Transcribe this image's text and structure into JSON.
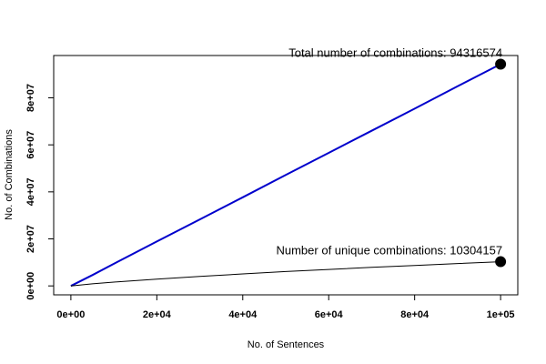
{
  "chart_data": {
    "type": "line",
    "title": "",
    "xlabel": "No. of Sentences",
    "ylabel": "No. of Combinations",
    "xlim": [
      -4000,
      104000
    ],
    "ylim": [
      -3800000,
      98000000
    ],
    "x_ticks": [
      {
        "value": 0,
        "label": "0e+00"
      },
      {
        "value": 20000,
        "label": "2e+04"
      },
      {
        "value": 40000,
        "label": "4e+04"
      },
      {
        "value": 60000,
        "label": "6e+04"
      },
      {
        "value": 80000,
        "label": "8e+04"
      },
      {
        "value": 100000,
        "label": "1e+05"
      }
    ],
    "y_ticks": [
      {
        "value": 0,
        "label": "0e+00"
      },
      {
        "value": 20000000,
        "label": "2e+07"
      },
      {
        "value": 40000000,
        "label": "4e+07"
      },
      {
        "value": 60000000,
        "label": "6e+07"
      },
      {
        "value": 80000000,
        "label": "8e+07"
      }
    ],
    "series": [
      {
        "color": "#0000cc",
        "x": [
          0,
          5000,
          10000,
          20000,
          30000,
          40000,
          50000,
          60000,
          70000,
          80000,
          90000,
          100000
        ],
        "y": [
          0,
          4600000,
          9400000,
          18900000,
          28300000,
          37700000,
          47200000,
          56600000,
          66000000,
          75400000,
          84900000,
          94316574
        ]
      },
      {
        "color": "#000000",
        "x": [
          0,
          5000,
          10000,
          20000,
          30000,
          40000,
          50000,
          60000,
          70000,
          80000,
          90000,
          100000
        ],
        "y": [
          0,
          900000,
          1600000,
          2900000,
          4000000,
          5100000,
          6100000,
          7000000,
          7900000,
          8700000,
          9500000,
          10304157
        ]
      }
    ],
    "endpoints": [
      {
        "x": 100000,
        "y": 94316574,
        "label": "Total number of combinations:  94316574"
      },
      {
        "x": 100000,
        "y": 10304157,
        "label": "Number of unique combinations:  10304157"
      }
    ],
    "grid": false,
    "legend": "none"
  }
}
